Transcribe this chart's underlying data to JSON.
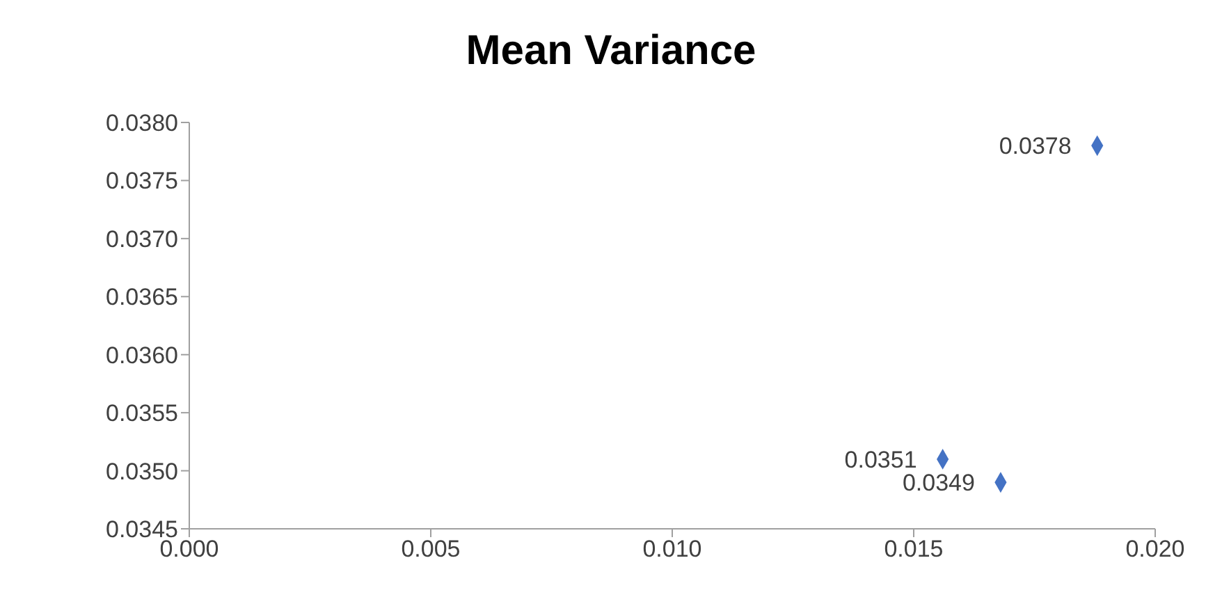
{
  "chart_data": {
    "type": "scatter",
    "title": "Mean Variance",
    "x": [
      0.0188,
      0.0156,
      0.0168
    ],
    "values": [
      0.0378,
      0.0351,
      0.0349
    ],
    "color": "#4472c4",
    "marker": "diamond",
    "data_labels": true,
    "xlim": [
      0,
      0.02
    ],
    "xticks": [
      {
        "value": 0,
        "label": "0.000"
      },
      {
        "value": 0.005,
        "label": "0.005"
      },
      {
        "value": 0.01,
        "label": "0.010"
      },
      {
        "value": 0.015,
        "label": "0.015"
      },
      {
        "value": 0.02,
        "label": "0.020"
      }
    ],
    "ylim": [
      0.0345,
      0.038
    ],
    "yticks": [
      {
        "value": 0.0345,
        "label": "0.0345"
      },
      {
        "value": 0.035,
        "label": "0.0350"
      },
      {
        "value": 0.0355,
        "label": "0.0355"
      },
      {
        "value": 0.036,
        "label": "0.0360"
      },
      {
        "value": 0.0365,
        "label": "0.0365"
      },
      {
        "value": 0.037,
        "label": "0.0370"
      },
      {
        "value": 0.0375,
        "label": "0.0375"
      },
      {
        "value": 0.038,
        "label": "0.0380"
      }
    ],
    "grid": false,
    "legend": false
  }
}
